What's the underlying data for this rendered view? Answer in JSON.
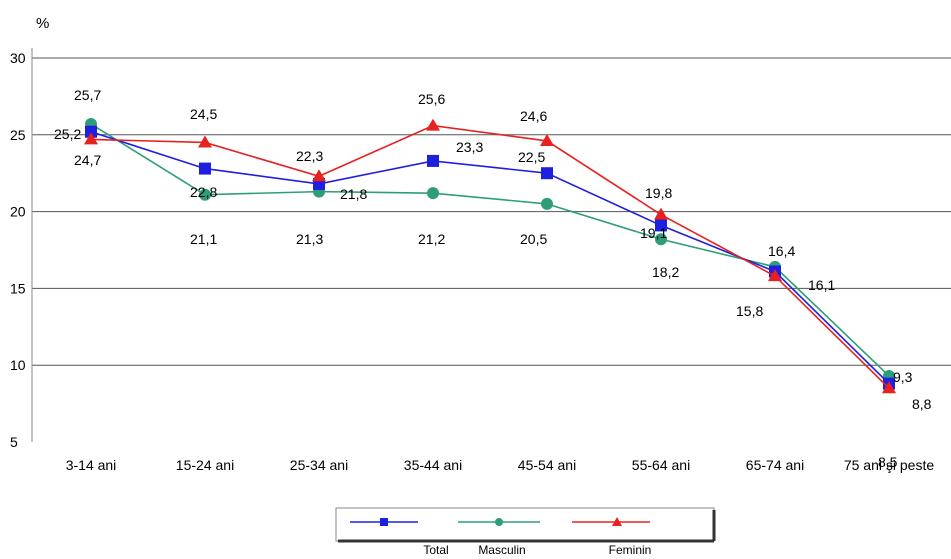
{
  "chart_data": {
    "type": "line",
    "ylabel": "%",
    "ylim": [
      5,
      30
    ],
    "yticks": [
      5,
      10,
      15,
      20,
      25,
      30
    ],
    "grid": true,
    "legend_position": "bottom",
    "categories": [
      "3-14 ani",
      "15-24 ani",
      "25-34 ani",
      "35-44 ani",
      "45-54 ani",
      "55-64 ani",
      "65-74 ani",
      "75 ani şi peste"
    ],
    "series": [
      {
        "name": "Total",
        "color": "#1f1fe0",
        "marker": "square",
        "values": [
          25.2,
          22.8,
          21.8,
          23.3,
          22.5,
          19.1,
          16.1,
          8.8
        ]
      },
      {
        "name": "Masculin",
        "color": "#2e9e7a",
        "marker": "circle",
        "values": [
          25.7,
          21.1,
          21.3,
          21.2,
          20.5,
          18.2,
          16.4,
          9.3
        ]
      },
      {
        "name": "Feminin",
        "color": "#e82020",
        "marker": "triangle",
        "values": [
          24.7,
          24.5,
          22.3,
          25.6,
          24.6,
          19.8,
          15.8,
          8.5
        ]
      }
    ],
    "data_labels": [
      {
        "text": "25,7"
      },
      {
        "text": "25,2"
      },
      {
        "text": "24,7"
      },
      {
        "text": "24,5"
      },
      {
        "text": "22,8"
      },
      {
        "text": "21,1"
      },
      {
        "text": "22,3"
      },
      {
        "text": "21,8"
      },
      {
        "text": "21,3"
      },
      {
        "text": "25,6"
      },
      {
        "text": "23,3"
      },
      {
        "text": "21,2"
      },
      {
        "text": "24,6"
      },
      {
        "text": "22,5"
      },
      {
        "text": "20,5"
      },
      {
        "text": "19,8"
      },
      {
        "text": "19,1"
      },
      {
        "text": "18,2"
      },
      {
        "text": "16,4"
      },
      {
        "text": "16,1"
      },
      {
        "text": "15,8"
      },
      {
        "text": "9,3"
      },
      {
        "text": "8,8"
      },
      {
        "text": "8,5"
      }
    ]
  }
}
